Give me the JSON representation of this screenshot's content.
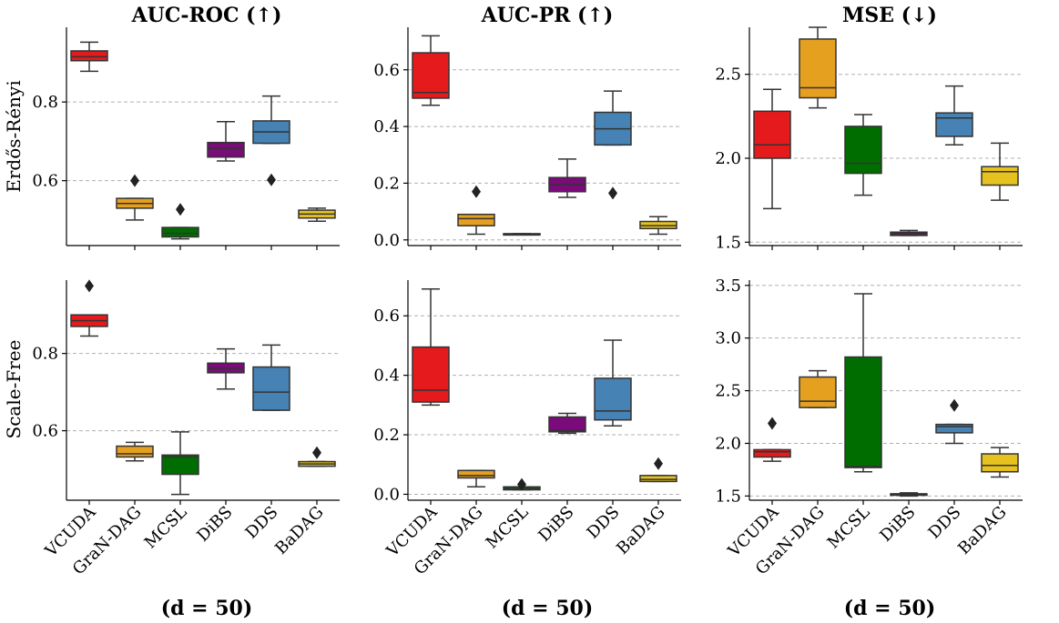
{
  "colors": {
    "VCUDA": "#e41a1c",
    "GraN-DAG": "#e5a020",
    "MCSL": "#006d00",
    "DiBS": "#7b0a7b",
    "DDS": "#4682b4",
    "BaDAG": "#e6c21e"
  },
  "row_labels": [
    "Erdős-Rényi",
    "Scale-Free"
  ],
  "column_titles": [
    "AUC-ROC (↑)",
    "AUC-PR (↑)",
    "MSE (↓)"
  ],
  "footers": [
    "(d = 50)",
    "(d = 50)",
    "(d = 50)"
  ],
  "chart_data": [
    {
      "type": "box",
      "row": "Erdős-Rényi",
      "title": "AUC-ROC (↑)",
      "ylim": [
        0.435,
        0.99
      ],
      "yticks": [
        0.6,
        0.8
      ],
      "ytick_labels": [
        "0.6",
        "0.8"
      ],
      "categories": [
        "VCUDA",
        "GraN-DAG",
        "MCSL",
        "DiBS",
        "DDS",
        "BaDAG"
      ],
      "boxes": [
        {
          "q1": 0.905,
          "median": 0.915,
          "q3": 0.93,
          "whislo": 0.878,
          "whishi": 0.952,
          "fliers": []
        },
        {
          "q1": 0.53,
          "median": 0.542,
          "q3": 0.555,
          "whislo": 0.5,
          "whishi": 0.555,
          "fliers": [
            0.6
          ]
        },
        {
          "q1": 0.457,
          "median": 0.466,
          "q3": 0.481,
          "whislo": 0.452,
          "whishi": 0.481,
          "fliers": [
            0.527
          ]
        },
        {
          "q1": 0.66,
          "median": 0.682,
          "q3": 0.697,
          "whislo": 0.65,
          "whishi": 0.75,
          "fliers": []
        },
        {
          "q1": 0.695,
          "median": 0.724,
          "q3": 0.752,
          "whislo": 0.695,
          "whishi": 0.815,
          "fliers": [
            0.602
          ]
        },
        {
          "q1": 0.505,
          "median": 0.515,
          "q3": 0.525,
          "whislo": 0.497,
          "whishi": 0.53,
          "fliers": []
        }
      ]
    },
    {
      "type": "box",
      "row": "Erdős-Rényi",
      "title": "AUC-PR (↑)",
      "ylim": [
        -0.02,
        0.75
      ],
      "yticks": [
        0.0,
        0.2,
        0.4,
        0.6
      ],
      "ytick_labels": [
        "0.0",
        "0.2",
        "0.4",
        "0.6"
      ],
      "categories": [
        "VCUDA",
        "GraN-DAG",
        "MCSL",
        "DiBS",
        "DDS",
        "BaDAG"
      ],
      "boxes": [
        {
          "q1": 0.5,
          "median": 0.52,
          "q3": 0.66,
          "whislo": 0.475,
          "whishi": 0.72,
          "fliers": []
        },
        {
          "q1": 0.05,
          "median": 0.075,
          "q3": 0.09,
          "whislo": 0.02,
          "whishi": 0.09,
          "fliers": [
            0.17
          ]
        },
        {
          "q1": 0.018,
          "median": 0.02,
          "q3": 0.022,
          "whislo": 0.018,
          "whishi": 0.022,
          "fliers": []
        },
        {
          "q1": 0.17,
          "median": 0.195,
          "q3": 0.22,
          "whislo": 0.15,
          "whishi": 0.285,
          "fliers": []
        },
        {
          "q1": 0.335,
          "median": 0.392,
          "q3": 0.45,
          "whislo": 0.335,
          "whishi": 0.525,
          "fliers": [
            0.165
          ]
        },
        {
          "q1": 0.04,
          "median": 0.05,
          "q3": 0.065,
          "whislo": 0.02,
          "whishi": 0.082,
          "fliers": []
        }
      ]
    },
    {
      "type": "box",
      "row": "Erdős-Rényi",
      "title": "MSE (↓)",
      "ylim": [
        1.48,
        2.78
      ],
      "yticks": [
        1.5,
        2.0,
        2.5
      ],
      "ytick_labels": [
        "1.5",
        "2.0",
        "2.5"
      ],
      "categories": [
        "VCUDA",
        "GraN-DAG",
        "MCSL",
        "DiBS",
        "DDS",
        "BaDAG"
      ],
      "boxes": [
        {
          "q1": 2.0,
          "median": 2.08,
          "q3": 2.28,
          "whislo": 1.7,
          "whishi": 2.41,
          "fliers": []
        },
        {
          "q1": 2.36,
          "median": 2.42,
          "q3": 2.71,
          "whislo": 2.3,
          "whishi": 2.78,
          "fliers": []
        },
        {
          "q1": 1.91,
          "median": 1.97,
          "q3": 2.19,
          "whislo": 1.78,
          "whishi": 2.26,
          "fliers": []
        },
        {
          "q1": 1.54,
          "median": 1.55,
          "q3": 1.56,
          "whislo": 1.54,
          "whishi": 1.57,
          "fliers": []
        },
        {
          "q1": 2.13,
          "median": 2.24,
          "q3": 2.27,
          "whislo": 2.08,
          "whishi": 2.43,
          "fliers": []
        },
        {
          "q1": 1.84,
          "median": 1.92,
          "q3": 1.95,
          "whislo": 1.75,
          "whishi": 2.09,
          "fliers": []
        }
      ]
    },
    {
      "type": "box",
      "row": "Scale-Free",
      "title": "AUC-ROC (↑)",
      "ylim": [
        0.42,
        0.99
      ],
      "yticks": [
        0.6,
        0.8
      ],
      "ytick_labels": [
        "0.6",
        "0.8"
      ],
      "categories": [
        "VCUDA",
        "GraN-DAG",
        "MCSL",
        "DiBS",
        "DDS",
        "BaDAG"
      ],
      "boxes": [
        {
          "q1": 0.87,
          "median": 0.885,
          "q3": 0.9,
          "whislo": 0.845,
          "whishi": 0.9,
          "fliers": [
            0.975
          ]
        },
        {
          "q1": 0.532,
          "median": 0.54,
          "q3": 0.56,
          "whislo": 0.522,
          "whishi": 0.57,
          "fliers": []
        },
        {
          "q1": 0.487,
          "median": 0.532,
          "q3": 0.537,
          "whislo": 0.435,
          "whishi": 0.597,
          "fliers": []
        },
        {
          "q1": 0.75,
          "median": 0.762,
          "q3": 0.775,
          "whislo": 0.708,
          "whishi": 0.812,
          "fliers": []
        },
        {
          "q1": 0.653,
          "median": 0.7,
          "q3": 0.765,
          "whislo": 0.653,
          "whishi": 0.822,
          "fliers": []
        },
        {
          "q1": 0.508,
          "median": 0.514,
          "q3": 0.52,
          "whislo": 0.508,
          "whishi": 0.52,
          "fliers": [
            0.543
          ]
        }
      ]
    },
    {
      "type": "box",
      "row": "Scale-Free",
      "title": "AUC-PR (↑)",
      "ylim": [
        -0.02,
        0.72
      ],
      "yticks": [
        0.0,
        0.2,
        0.4,
        0.6
      ],
      "ytick_labels": [
        "0.0",
        "0.2",
        "0.4",
        "0.6"
      ],
      "categories": [
        "VCUDA",
        "GraN-DAG",
        "MCSL",
        "DiBS",
        "DDS",
        "BaDAG"
      ],
      "boxes": [
        {
          "q1": 0.31,
          "median": 0.35,
          "q3": 0.495,
          "whislo": 0.3,
          "whishi": 0.69,
          "fliers": []
        },
        {
          "q1": 0.055,
          "median": 0.063,
          "q3": 0.08,
          "whislo": 0.025,
          "whishi": 0.08,
          "fliers": []
        },
        {
          "q1": 0.015,
          "median": 0.02,
          "q3": 0.025,
          "whislo": 0.015,
          "whishi": 0.025,
          "fliers": [
            0.033
          ]
        },
        {
          "q1": 0.21,
          "median": 0.215,
          "q3": 0.26,
          "whislo": 0.205,
          "whishi": 0.272,
          "fliers": []
        },
        {
          "q1": 0.25,
          "median": 0.28,
          "q3": 0.39,
          "whislo": 0.23,
          "whishi": 0.518,
          "fliers": []
        },
        {
          "q1": 0.043,
          "median": 0.05,
          "q3": 0.063,
          "whislo": 0.043,
          "whishi": 0.063,
          "fliers": [
            0.103
          ]
        }
      ]
    },
    {
      "type": "box",
      "row": "Scale-Free",
      "title": "MSE (↓)",
      "ylim": [
        1.46,
        3.55
      ],
      "yticks": [
        1.5,
        2.0,
        2.5,
        3.0,
        3.5
      ],
      "ytick_labels": [
        "1.5",
        "2.0",
        "2.5",
        "3.0",
        "3.5"
      ],
      "categories": [
        "VCUDA",
        "GraN-DAG",
        "MCSL",
        "DiBS",
        "DDS",
        "BaDAG"
      ],
      "boxes": [
        {
          "q1": 1.87,
          "median": 1.92,
          "q3": 1.94,
          "whislo": 1.83,
          "whishi": 1.94,
          "fliers": [
            2.19
          ]
        },
        {
          "q1": 2.34,
          "median": 2.4,
          "q3": 2.63,
          "whislo": 2.34,
          "whishi": 2.69,
          "fliers": []
        },
        {
          "q1": 1.77,
          "median": 1.78,
          "q3": 2.82,
          "whislo": 1.73,
          "whishi": 3.42,
          "fliers": []
        },
        {
          "q1": 1.51,
          "median": 1.52,
          "q3": 1.52,
          "whislo": 1.5,
          "whishi": 1.53,
          "fliers": []
        },
        {
          "q1": 2.1,
          "median": 2.16,
          "q3": 2.18,
          "whislo": 2.0,
          "whishi": 2.18,
          "fliers": [
            2.36
          ]
        },
        {
          "q1": 1.73,
          "median": 1.79,
          "q3": 1.9,
          "whislo": 1.68,
          "whishi": 1.96,
          "fliers": []
        }
      ]
    }
  ]
}
